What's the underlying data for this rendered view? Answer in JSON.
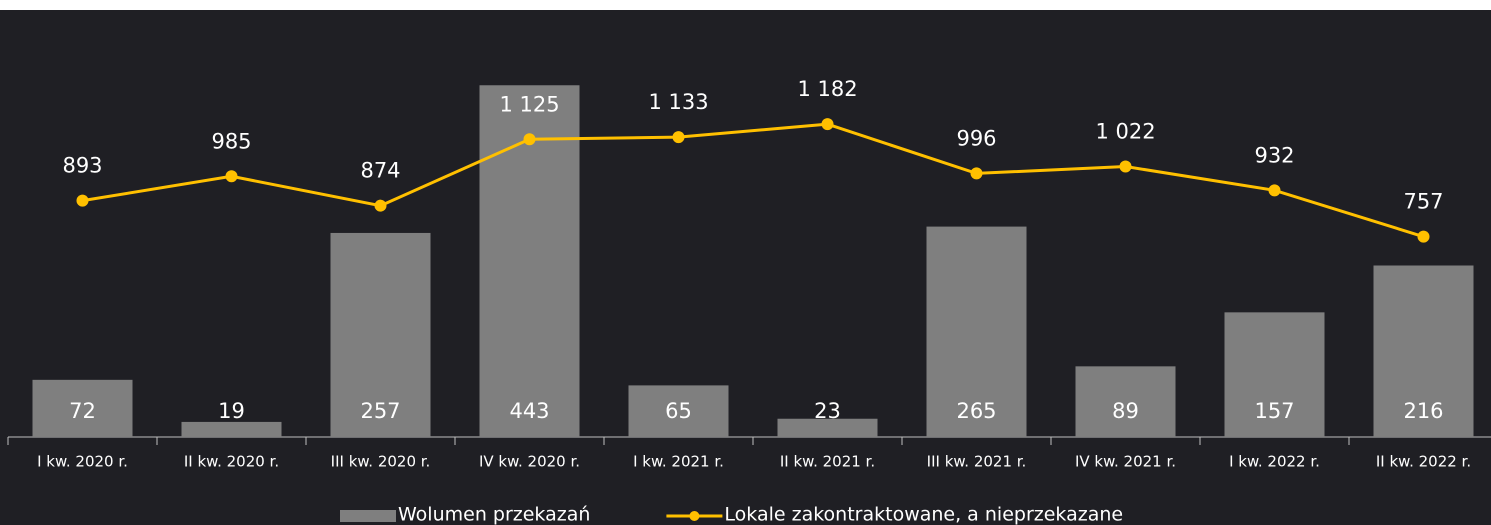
{
  "chart_data": {
    "type": "bar-line",
    "categories": [
      "I kw. 2020 r.",
      "II kw. 2020 r.",
      "III kw. 2020 r.",
      "IV kw. 2020 r.",
      "I kw. 2021 r.",
      "II kw. 2021 r.",
      "III kw. 2021 r.",
      "IV kw. 2021 r.",
      "I kw. 2022 r.",
      "II kw. 2022 r."
    ],
    "series": [
      {
        "name": "Wolumen przekazań",
        "type": "bar",
        "color": "#7f7f7f",
        "values": [
          72,
          19,
          257,
          443,
          65,
          23,
          265,
          89,
          157,
          216
        ]
      },
      {
        "name": "Lokale zakontraktowane, a nieprzekazane",
        "type": "line",
        "axis": "y2",
        "color": "#ffc000",
        "values": [
          893,
          985,
          874,
          1125,
          1133,
          1182,
          996,
          1022,
          932,
          757
        ],
        "value_labels": [
          "893",
          "985",
          "874",
          "1 125",
          "1 133",
          "1 182",
          "996",
          "1 022",
          "932",
          "757"
        ]
      }
    ],
    "ylim": [
      0,
      500
    ],
    "y2lim": [
      0,
      1500
    ],
    "legend": "bottom"
  }
}
